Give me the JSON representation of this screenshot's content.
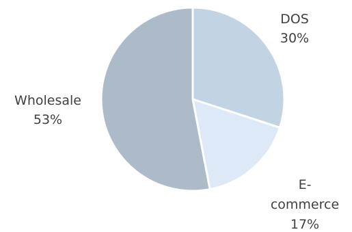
{
  "chart_data": {
    "type": "pie",
    "categories": [
      "DOS",
      "E-commerce",
      "Wholesale"
    ],
    "values": [
      30,
      17,
      53
    ],
    "value_labels": [
      "30%",
      "17%",
      "53%"
    ],
    "label_lines": [
      [
        "DOS",
        "30%"
      ],
      [
        "E-",
        "commerce",
        "17%"
      ]
    ],
    "colors": [
      "#c2d3e3",
      "#dde9f6",
      "#adbbc9"
    ],
    "start_angle_deg": 0,
    "direction": "clockwise",
    "title": "",
    "legend": "none",
    "data_labels": "outside"
  }
}
